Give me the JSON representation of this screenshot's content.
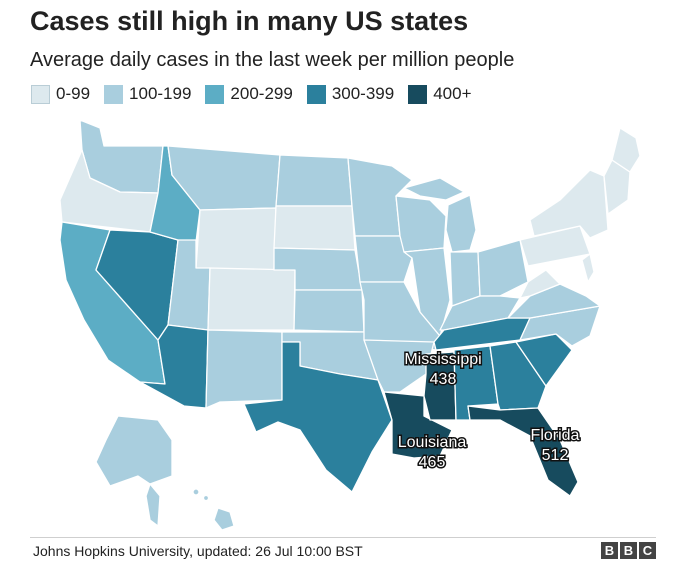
{
  "header": {
    "title": "Cases still high in many US states",
    "subtitle": "Average daily cases in the last week per million people"
  },
  "legend": [
    {
      "label": "0-99",
      "color": "#dde9ee"
    },
    {
      "label": "100-199",
      "color": "#a9cede"
    },
    {
      "label": "200-299",
      "color": "#5cadc5"
    },
    {
      "label": "300-399",
      "color": "#2b809d"
    },
    {
      "label": "400+",
      "color": "#174b5e"
    }
  ],
  "callouts": [
    {
      "state": "Mississippi",
      "value": "438"
    },
    {
      "state": "Louisiana",
      "value": "465"
    },
    {
      "state": "Florida",
      "value": "512"
    }
  ],
  "states": {
    "WA": "100-199",
    "OR": "0-99",
    "CA": "200-299",
    "NV": "300-399",
    "ID": "200-299",
    "MT": "100-199",
    "WY": "0-99",
    "UT": "100-199",
    "AZ": "300-399",
    "CO": "0-99",
    "NM": "100-199",
    "ND": "100-199",
    "SD": "0-99",
    "NE": "100-199",
    "KS": "100-199",
    "OK": "100-199",
    "TX": "300-399",
    "MN": "100-199",
    "IA": "100-199",
    "MO": "100-199",
    "AR": "100-199",
    "LA": "400+",
    "WI": "100-199",
    "IL": "100-199",
    "MS": "400+",
    "MI": "100-199",
    "IN": "100-199",
    "KY": "100-199",
    "TN": "300-399",
    "AL": "300-399",
    "OH": "100-199",
    "WV": "0-99",
    "VA": "100-199",
    "NC": "100-199",
    "SC": "300-399",
    "GA": "300-399",
    "FL": "400+",
    "PA": "0-99",
    "NY": "0-99",
    "ME": "0-99",
    "AK": "100-199",
    "HI": "100-199"
  },
  "footer": {
    "source": "Johns Hopkins University, updated: 26 Jul 10:00 BST",
    "logo_letters": [
      "B",
      "B",
      "C"
    ]
  }
}
